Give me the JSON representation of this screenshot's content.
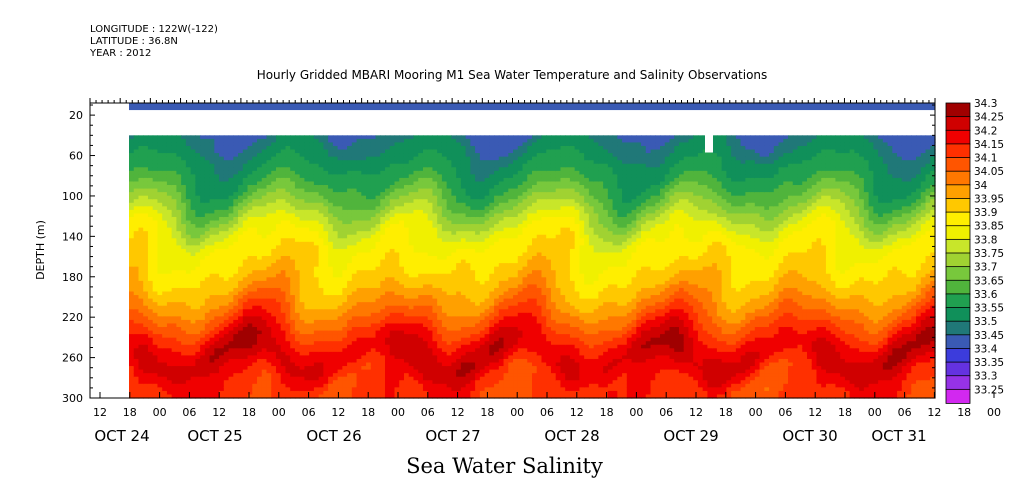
{
  "header": {
    "longitude": "LONGITUDE : 122W(-122)",
    "latitude": "LATITUDE : 36.8N",
    "year": "YEAR : 2012"
  },
  "chart_data": {
    "type": "heatmap",
    "title": "Hourly Gridded MBARI Mooring M1 Sea Water Temperature and Salinity Observations",
    "xlabel": "Sea Water Salinity",
    "ylabel": "DEPTH (m)",
    "y_ticks": [
      "20",
      "60",
      "100",
      "140",
      "180",
      "220",
      "260",
      "300"
    ],
    "y_range": [
      300,
      8
    ],
    "x_hour_ticks": [
      "12",
      "18",
      "00",
      "06",
      "12",
      "18",
      "00",
      "06",
      "12",
      "18",
      "00",
      "06",
      "12",
      "18",
      "00",
      "06",
      "12",
      "18",
      "00",
      "06",
      "12",
      "18",
      "00",
      "06",
      "12",
      "18",
      "00",
      "06",
      "12",
      "18",
      "00",
      "06"
    ],
    "x_date_ticks": [
      "OCT 24",
      "OCT 25",
      "OCT 26",
      "OCT 27",
      "OCT 28",
      "OCT 29",
      "OCT 30",
      "OCT 31"
    ],
    "legend_levels": [
      "34.3",
      "34.25",
      "34.2",
      "34.15",
      "34.1",
      "34.05",
      "34",
      "33.95",
      "33.9",
      "33.85",
      "33.8",
      "33.75",
      "33.7",
      "33.65",
      "33.6",
      "33.55",
      "33.5",
      "33.45",
      "33.4",
      "33.35",
      "33.3",
      "33.25"
    ],
    "legend_colors": [
      "#a00000",
      "#d00000",
      "#f00000",
      "#ff3000",
      "#ff5500",
      "#ff7800",
      "#ffa000",
      "#ffc800",
      "#ffee00",
      "#f0f000",
      "#c8e62a",
      "#a0d232",
      "#78c83c",
      "#50b43c",
      "#20a050",
      "#10905a",
      "#207878",
      "#3a5ab4",
      "#3c3cdc",
      "#6432e0",
      "#9632e6",
      "#d228f0"
    ],
    "depth_profile": [
      {
        "depth": 12,
        "value": 33.47
      },
      {
        "depth": 40,
        "value": 33.5
      },
      {
        "depth": 50,
        "value": 33.55
      },
      {
        "depth": 60,
        "value": 33.57
      },
      {
        "depth": 70,
        "value": 33.6
      },
      {
        "depth": 80,
        "value": 33.62
      },
      {
        "depth": 90,
        "value": 33.65
      },
      {
        "depth": 100,
        "value": 33.7
      },
      {
        "depth": 110,
        "value": 33.75
      },
      {
        "depth": 120,
        "value": 33.8
      },
      {
        "depth": 130,
        "value": 33.85
      },
      {
        "depth": 140,
        "value": 33.9
      },
      {
        "depth": 160,
        "value": 33.93
      },
      {
        "depth": 180,
        "value": 33.97
      },
      {
        "depth": 200,
        "value": 34.03
      },
      {
        "depth": 210,
        "value": 34.08
      },
      {
        "depth": 220,
        "value": 34.12
      },
      {
        "depth": 230,
        "value": 34.17
      },
      {
        "depth": 240,
        "value": 34.22
      },
      {
        "depth": 250,
        "value": 34.26
      },
      {
        "depth": 260,
        "value": 34.27
      },
      {
        "depth": 270,
        "value": 34.23
      },
      {
        "depth": 280,
        "value": 34.18
      },
      {
        "depth": 290,
        "value": 34.17
      },
      {
        "depth": 300,
        "value": 34.16
      }
    ]
  }
}
